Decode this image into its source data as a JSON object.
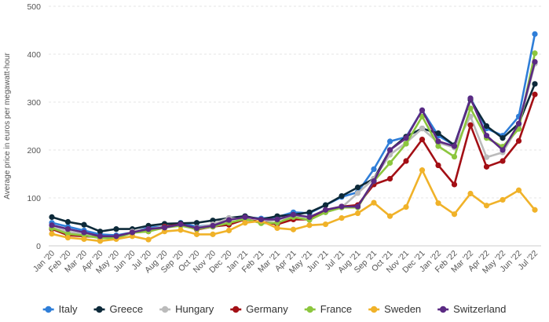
{
  "chart_data": {
    "type": "line",
    "title": "",
    "xlabel": "",
    "ylabel": "Average price in euros per megawatt-hour",
    "ylim": [
      0,
      500
    ],
    "yticks": [
      0,
      100,
      200,
      300,
      400,
      500
    ],
    "grid": true,
    "legend_position": "bottom",
    "x": [
      "Jan '20",
      "Feb '20",
      "Mar '20",
      "Apr '20",
      "May '20",
      "Jun '20",
      "Jul '20",
      "Aug '20",
      "Sep '20",
      "Oct '20",
      "Nov '20",
      "Dec '20",
      "Jan '21",
      "Feb '21",
      "Mar '21",
      "Apr '21",
      "May '21",
      "Jun '21",
      "Jul '21",
      "Aug '21",
      "Sep '21",
      "Oct '21",
      "Nov '21",
      "Dec '21",
      "Jan '22",
      "Feb '22",
      "Mar '22",
      "Apr '22",
      "May '22",
      "Jun '22",
      "Jul '22"
    ],
    "series": [
      {
        "name": "Italy",
        "color": "#2f7ed8",
        "values": [
          48,
          40,
          32,
          24,
          22,
          28,
          38,
          40,
          48,
          40,
          44,
          56,
          60,
          57,
          60,
          70,
          68,
          85,
          102,
          112,
          160,
          218,
          227,
          283,
          230,
          210,
          308,
          245,
          230,
          270,
          442
        ]
      },
      {
        "name": "Greece",
        "color": "#0d2a3a",
        "values": [
          60,
          50,
          44,
          30,
          35,
          35,
          42,
          46,
          47,
          48,
          53,
          58,
          62,
          55,
          62,
          65,
          70,
          85,
          104,
          122,
          140,
          200,
          228,
          245,
          235,
          210,
          305,
          250,
          225,
          255,
          338
        ]
      },
      {
        "name": "Hungary",
        "color": "#bbbbbb",
        "values": [
          38,
          30,
          24,
          17,
          15,
          30,
          35,
          40,
          42,
          38,
          45,
          58,
          55,
          48,
          55,
          60,
          55,
          70,
          80,
          110,
          140,
          190,
          215,
          245,
          215,
          205,
          270,
          185,
          195,
          250,
          380
        ]
      },
      {
        "name": "Germany",
        "color": "#a30f15",
        "values": [
          35,
          22,
          20,
          18,
          18,
          28,
          30,
          40,
          45,
          34,
          40,
          44,
          55,
          50,
          45,
          55,
          55,
          75,
          82,
          85,
          128,
          140,
          177,
          222,
          168,
          128,
          252,
          165,
          177,
          219,
          316
        ]
      },
      {
        "name": "France",
        "color": "#8cc63e",
        "values": [
          37,
          25,
          22,
          16,
          16,
          27,
          30,
          38,
          42,
          35,
          40,
          48,
          56,
          47,
          48,
          60,
          54,
          70,
          80,
          80,
          135,
          173,
          213,
          270,
          208,
          186,
          287,
          225,
          207,
          244,
          402
        ]
      },
      {
        "name": "Sweden",
        "color": "#f0b229",
        "values": [
          25,
          17,
          14,
          10,
          14,
          20,
          13,
          30,
          33,
          24,
          24,
          32,
          48,
          52,
          37,
          34,
          43,
          45,
          58,
          68,
          90,
          62,
          81,
          158,
          89,
          66,
          109,
          84,
          96,
          116,
          75
        ]
      },
      {
        "name": "Switzerland",
        "color": "#5b2a83",
        "values": [
          43,
          35,
          28,
          20,
          20,
          28,
          35,
          38,
          45,
          37,
          42,
          54,
          60,
          55,
          55,
          65,
          60,
          75,
          82,
          82,
          135,
          200,
          225,
          283,
          218,
          208,
          308,
          230,
          200,
          255,
          384
        ]
      }
    ]
  }
}
